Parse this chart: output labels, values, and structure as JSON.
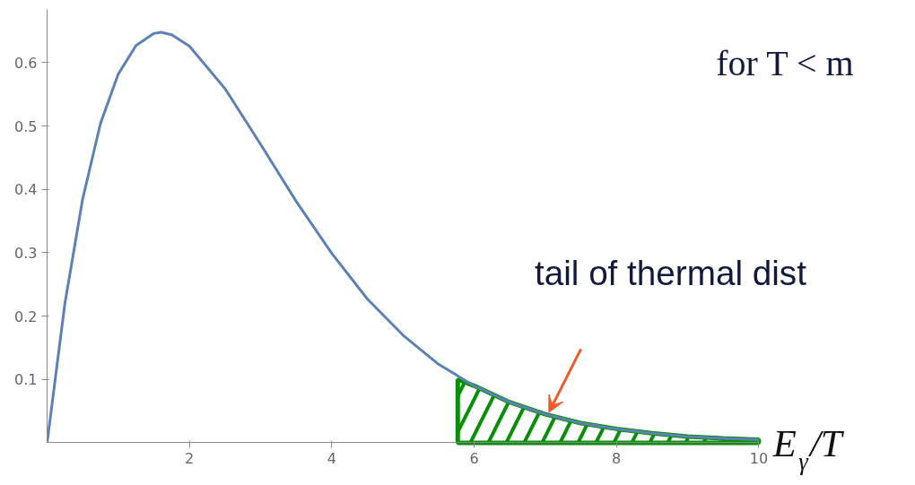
{
  "chart_data": {
    "type": "line",
    "xlabel": "E$_{γ}$/T",
    "x": [
      0,
      0.25,
      0.5,
      0.75,
      1,
      1.25,
      1.5,
      1.6,
      1.75,
      2,
      2.5,
      3,
      3.5,
      4,
      4.5,
      5,
      5.5,
      6,
      6.5,
      7,
      7.5,
      8,
      8.5,
      9,
      9.5,
      10
    ],
    "series": [
      {
        "color": "#5e81b5",
        "values": [
          0,
          0.22,
          0.385,
          0.504,
          0.582,
          0.627,
          0.646,
          0.648,
          0.644,
          0.626,
          0.559,
          0.471,
          0.381,
          0.299,
          0.227,
          0.17,
          0.124,
          0.09,
          0.064,
          0.045,
          0.031,
          0.022,
          0.015,
          0.01,
          0.007,
          0.005
        ]
      },
      {
        "type": "area",
        "color": "#0a8f0a",
        "x": [
          5.77,
          6,
          6.5,
          7,
          7.5,
          8,
          8.5,
          9,
          9.5,
          10
        ],
        "values": [
          0.1,
          0.09,
          0.064,
          0.045,
          0.031,
          0.022,
          0.015,
          0.01,
          0.007,
          0.005
        ]
      }
    ],
    "xlim": [
      0,
      10
    ],
    "ylim": [
      0,
      0.684
    ],
    "xticks": [
      2,
      4,
      6,
      8,
      10
    ],
    "yticks": [
      0.1,
      0.2,
      0.3,
      0.4,
      0.5,
      0.6
    ],
    "grid": false,
    "marker": "none",
    "line_style": "solid",
    "annotations": [
      "for T < m",
      "tail of thermal dist"
    ]
  }
}
